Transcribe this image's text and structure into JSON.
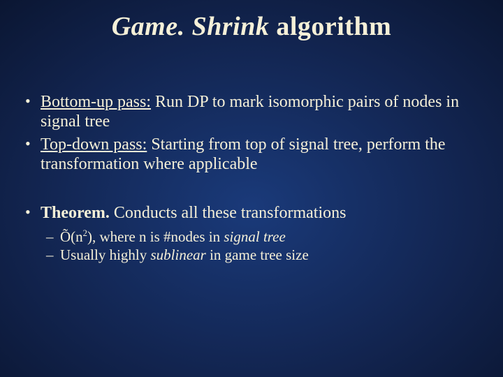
{
  "title": {
    "italic_part": "Game. Shrink",
    "rest": " algorithm"
  },
  "bullets": {
    "b1": {
      "label": "Bottom-up pass:",
      "text": " Run DP to mark isomorphic pairs of nodes in signal tree"
    },
    "b2": {
      "label": "Top-down pass:",
      "text": " Starting from top of signal tree, perform the transformation where applicable"
    },
    "b3": {
      "label": "Theorem.",
      "text": "  Conducts all these transformations",
      "sub1": {
        "pre": "Õ(n",
        "sup": "2",
        "post": "), where n is #nodes in ",
        "ital": "signal tree"
      },
      "sub2": {
        "pre": "Usually highly ",
        "ital": "sublinear",
        "post": " in game tree size"
      }
    }
  },
  "style": {
    "text_color": "#f5f0d8",
    "bg_center": "#1a3a7a",
    "bg_outer": "#020510",
    "title_fontsize": 38,
    "body_fontsize": 24,
    "sub_fontsize": 21
  }
}
